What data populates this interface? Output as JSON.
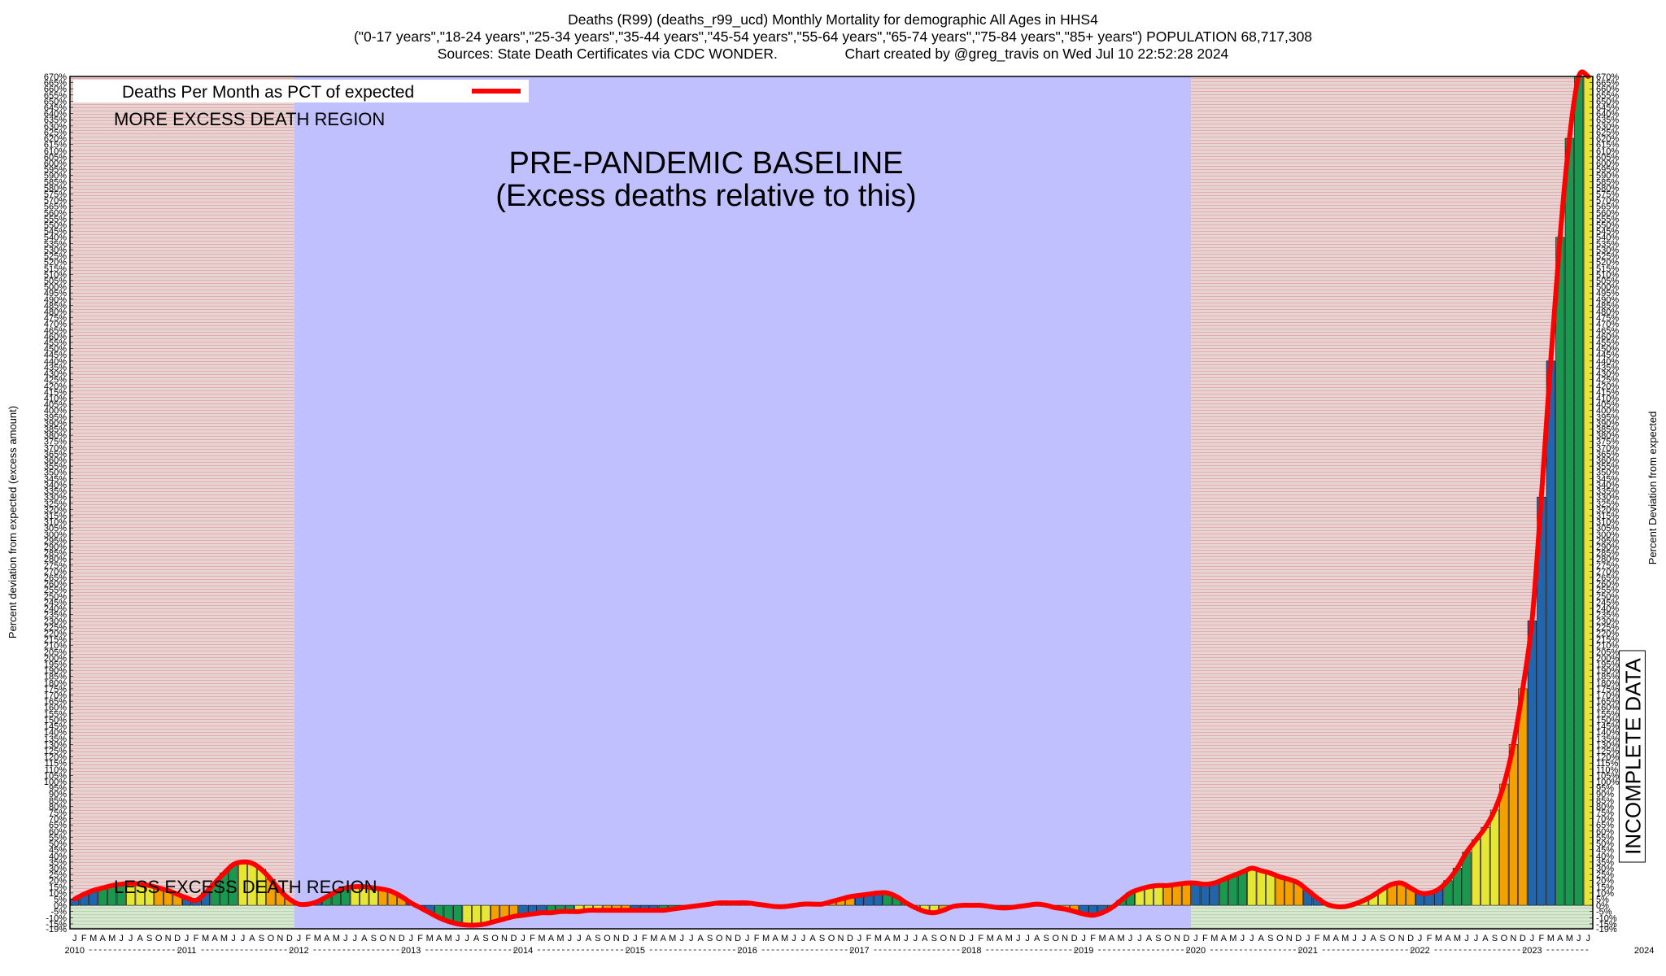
{
  "title_lines": [
    "Deaths (R99) (deaths_r99_ucd) Monthly Mortality for demographic All Ages in HHS4",
    "(\"0-17 years\",\"18-24 years\",\"25-34 years\",\"35-44 years\",\"45-54 years\",\"55-64 years\",\"65-74 years\",\"75-84 years\",\"85+ years\") POPULATION 68,717,308",
    "Sources: State Death Certificates via CDC WONDER.                 Chart created by @greg_travis on Wed Jul 10 22:52:28 2024"
  ],
  "chart_data": {
    "type": "bar",
    "title": "Deaths (R99) (deaths_r99_ucd) Monthly Mortality for demographic All Ages in HHS4",
    "ylabel_left": "Percent deviation from expected (excess amount)",
    "ylabel_right": "Percent Deviation from expected",
    "ylim": [
      -19,
      670
    ],
    "y_tick_step": 5,
    "month_letters": [
      "J",
      "F",
      "M",
      "A",
      "M",
      "J",
      "J",
      "A",
      "S",
      "O",
      "N",
      "D"
    ],
    "years": [
      "2010",
      "2011",
      "2012",
      "2013",
      "2014",
      "2015",
      "2016",
      "2017",
      "2018",
      "2019",
      "2020",
      "2021",
      "2022",
      "2023",
      "2024"
    ],
    "months_2024_shown": 7,
    "legend": {
      "label": "Deaths Per Month as PCT of expected",
      "position": "top-left",
      "line_color": "#ff0000"
    },
    "annotations": {
      "baseline_line1": "PRE-PANDEMIC BASELINE",
      "baseline_line2": "(Excess deaths relative to this)",
      "more_excess": "MORE EXCESS DEATH REGION",
      "less_excess": "LESS EXCESS DEATH REGION",
      "incomplete": "INCOMPLETE DATA"
    },
    "bar_colors": [
      "#2166ac",
      "#1a9850",
      "#e6e635",
      "#f4a000"
    ],
    "colors": {
      "line": "#ff0000",
      "baseline_region": "#c0c0ff",
      "excess_region": "#e8c8c8",
      "negative_band": "#cfe3c8",
      "incomplete_hatch": "#1a9850"
    },
    "baseline_period": [
      "2012-01",
      "2019-12"
    ],
    "incomplete_from": "2024-06",
    "values": [
      5,
      9,
      12,
      14,
      16,
      17,
      18,
      17,
      16,
      14,
      12,
      9,
      6,
      4,
      10,
      18,
      26,
      33,
      35,
      34,
      29,
      21,
      12,
      5,
      1,
      1,
      3,
      7,
      11,
      14,
      15,
      15,
      14,
      13,
      11,
      7,
      2,
      -2,
      -6,
      -10,
      -13,
      -15,
      -16,
      -16,
      -15,
      -13,
      -11,
      -9,
      -8,
      -7,
      -6,
      -6,
      -5,
      -5,
      -5,
      -4,
      -4,
      -4,
      -4,
      -4,
      -4,
      -4,
      -4,
      -4,
      -3,
      -2,
      -1,
      0,
      1,
      2,
      2,
      2,
      2,
      1,
      0,
      -1,
      -1,
      0,
      1,
      1,
      1,
      3,
      5,
      7,
      8,
      9,
      10,
      10,
      7,
      2,
      -2,
      -5,
      -6,
      -4,
      -1,
      0,
      0,
      0,
      -1,
      -2,
      -2,
      -1,
      0,
      1,
      0,
      -2,
      -3,
      -5,
      -7,
      -8,
      -6,
      -2,
      4,
      10,
      13,
      15,
      16,
      16,
      17,
      18,
      18,
      17,
      18,
      21,
      24,
      27,
      30,
      28,
      26,
      23,
      21,
      18,
      12,
      6,
      1,
      -1,
      -1,
      1,
      4,
      8,
      13,
      17,
      18,
      14,
      10,
      10,
      13,
      20,
      30,
      43,
      53,
      63,
      77,
      98,
      130,
      175,
      230,
      330,
      440,
      540,
      620,
      670,
      670
    ]
  }
}
